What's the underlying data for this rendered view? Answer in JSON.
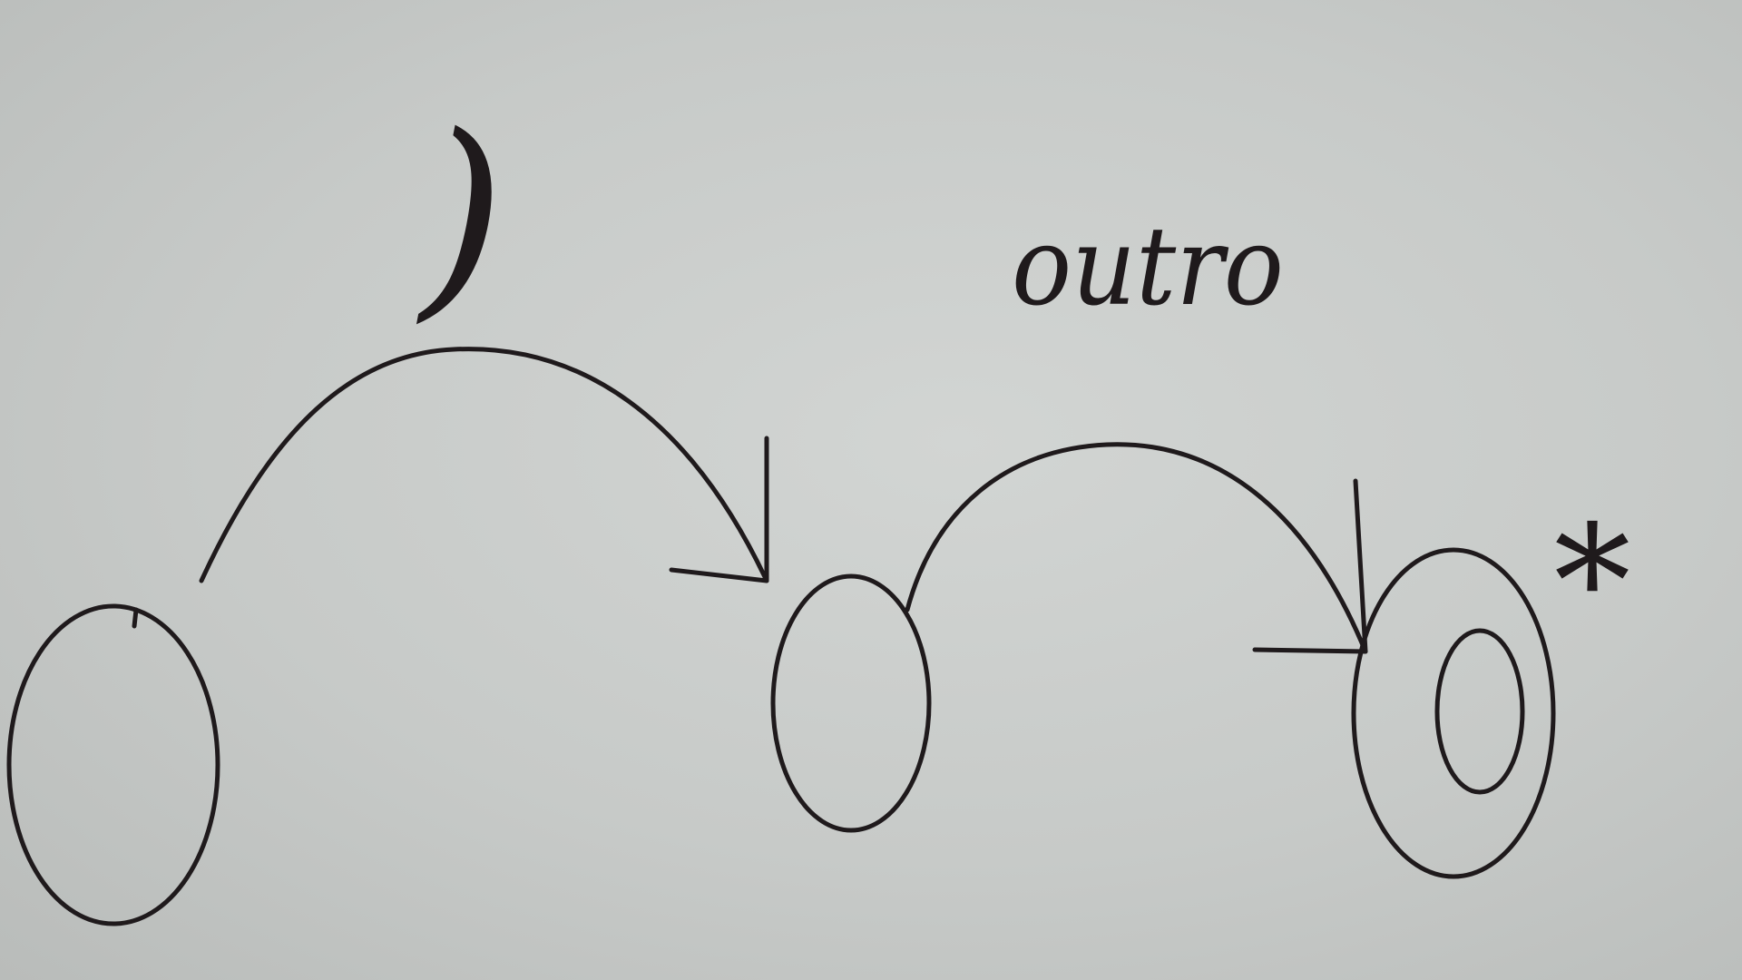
{
  "diagram": {
    "states": [
      {
        "id": "s0",
        "accepting": false
      },
      {
        "id": "s1",
        "accepting": false
      },
      {
        "id": "s2",
        "accepting": true
      }
    ],
    "transitions": [
      {
        "from": "s0",
        "to": "s1",
        "label": ")"
      },
      {
        "from": "s1",
        "to": "s2",
        "label": "outro"
      }
    ],
    "final_marker": "*"
  }
}
